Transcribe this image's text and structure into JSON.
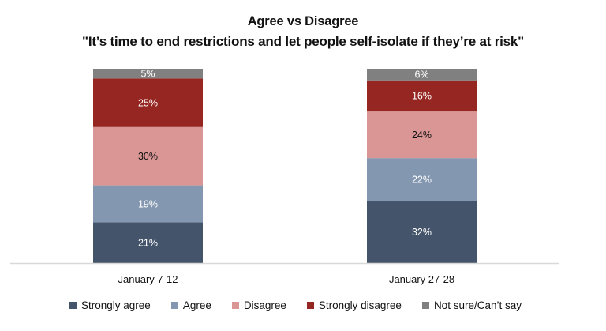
{
  "chart_data": {
    "type": "bar",
    "stacked": true,
    "title": "Agree vs Disagree",
    "subtitle": "\"It’s time to end restrictions and let people self-isolate if they’re at risk\"",
    "xlabel": "",
    "ylabel": "",
    "ylim": [
      0,
      100
    ],
    "grid": false,
    "legend_position": "bottom",
    "categories": [
      "January 7-12",
      "January 27-28"
    ],
    "series": [
      {
        "name": "Strongly agree",
        "color": "#44546a",
        "label_color": "#ffffff",
        "values": [
          21,
          32
        ]
      },
      {
        "name": "Agree",
        "color": "#8497b0",
        "label_color": "#ffffff",
        "values": [
          19,
          22
        ]
      },
      {
        "name": "Disagree",
        "color": "#da9694",
        "label_color": "#111111",
        "values": [
          30,
          24
        ]
      },
      {
        "name": "Strongly disagree",
        "color": "#962621",
        "label_color": "#ffffff",
        "values": [
          25,
          16
        ]
      },
      {
        "name": "Not sure/Can’t say",
        "color": "#808080",
        "label_color": "#ffffff",
        "values": [
          5,
          6
        ]
      }
    ],
    "value_suffix": "%"
  }
}
